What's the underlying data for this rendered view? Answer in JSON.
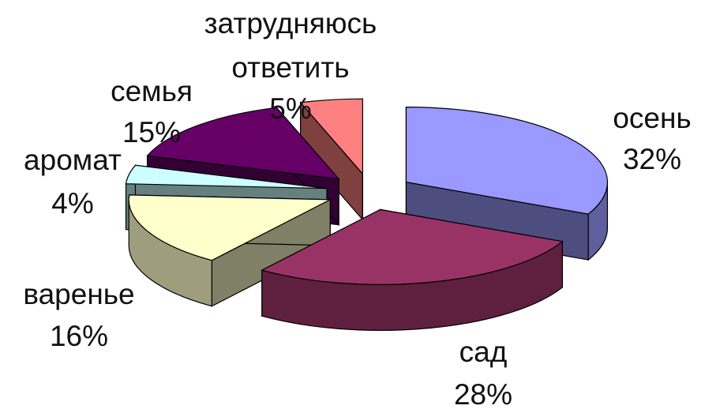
{
  "chart_data": {
    "type": "pie",
    "style": "3d-exploded",
    "slices": [
      {
        "label": "осень",
        "value": 32,
        "percent_label": "32%",
        "color": "#9999ff"
      },
      {
        "label": "сад",
        "value": 28,
        "percent_label": "28%",
        "color": "#993366"
      },
      {
        "label": "варенье",
        "value": 16,
        "percent_label": "16%",
        "color": "#ffffcc"
      },
      {
        "label": "аромат",
        "value": 4,
        "percent_label": "4%",
        "color": "#ccffff"
      },
      {
        "label": "семья",
        "value": 15,
        "percent_label": "15%",
        "color": "#660066"
      },
      {
        "label": "затрудняюсь ответить",
        "label_lines": [
          "затрудняюсь",
          "ответить"
        ],
        "value": 5,
        "percent_label": "5%",
        "color": "#ff8080"
      }
    ]
  }
}
